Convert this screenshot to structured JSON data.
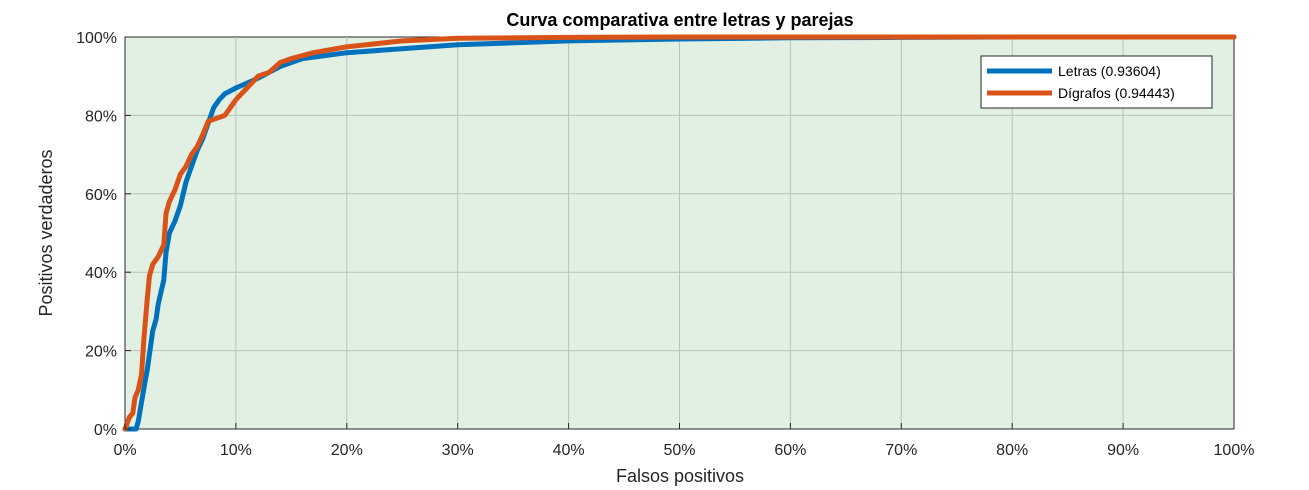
{
  "chart_data": {
    "type": "line",
    "title": "Curva comparativa entre letras y parejas",
    "xlabel": "Falsos positivos",
    "ylabel": "Positivos verdaderos",
    "xlim": [
      0,
      1
    ],
    "ylim": [
      0,
      1
    ],
    "x_ticks": [
      "0%",
      "10%",
      "20%",
      "30%",
      "40%",
      "50%",
      "60%",
      "70%",
      "80%",
      "90%",
      "100%"
    ],
    "y_ticks": [
      "0%",
      "20%",
      "40%",
      "60%",
      "80%",
      "100%"
    ],
    "grid": true,
    "legend_position": "top-right",
    "plot_background": "#e2efe3",
    "series": [
      {
        "name": "Letras (0.93604)",
        "color": "#0072bd",
        "x": [
          0.0,
          0.01,
          0.012,
          0.015,
          0.018,
          0.02,
          0.022,
          0.025,
          0.028,
          0.03,
          0.035,
          0.037,
          0.04,
          0.045,
          0.05,
          0.055,
          0.06,
          0.065,
          0.07,
          0.075,
          0.08,
          0.085,
          0.09,
          0.1,
          0.12,
          0.14,
          0.16,
          0.2,
          0.3,
          0.4,
          0.5,
          0.6,
          0.7,
          0.8,
          0.9,
          1.0
        ],
        "y": [
          0.0,
          0.0,
          0.02,
          0.07,
          0.12,
          0.15,
          0.19,
          0.25,
          0.28,
          0.32,
          0.38,
          0.45,
          0.5,
          0.53,
          0.57,
          0.63,
          0.67,
          0.71,
          0.74,
          0.78,
          0.82,
          0.84,
          0.855,
          0.87,
          0.895,
          0.925,
          0.945,
          0.96,
          0.98,
          0.99,
          0.995,
          0.998,
          0.999,
          1.0,
          1.0,
          1.0
        ]
      },
      {
        "name": "Dígrafos (0.94443)",
        "color": "#d95319",
        "x": [
          0.0,
          0.004,
          0.007,
          0.009,
          0.012,
          0.015,
          0.017,
          0.02,
          0.022,
          0.025,
          0.03,
          0.035,
          0.037,
          0.04,
          0.045,
          0.05,
          0.055,
          0.06,
          0.065,
          0.07,
          0.075,
          0.08,
          0.085,
          0.09,
          0.1,
          0.11,
          0.12,
          0.13,
          0.14,
          0.15,
          0.17,
          0.18,
          0.2,
          0.25,
          0.3,
          0.4,
          0.5,
          0.6,
          0.7,
          0.8,
          0.9,
          1.0
        ],
        "y": [
          0.0,
          0.03,
          0.04,
          0.08,
          0.1,
          0.14,
          0.23,
          0.33,
          0.39,
          0.42,
          0.44,
          0.47,
          0.55,
          0.58,
          0.61,
          0.65,
          0.67,
          0.7,
          0.72,
          0.75,
          0.785,
          0.79,
          0.795,
          0.8,
          0.84,
          0.87,
          0.9,
          0.91,
          0.935,
          0.945,
          0.96,
          0.965,
          0.975,
          0.99,
          0.997,
          0.999,
          1.0,
          1.0,
          1.0,
          1.0,
          1.0,
          1.0
        ]
      }
    ]
  }
}
